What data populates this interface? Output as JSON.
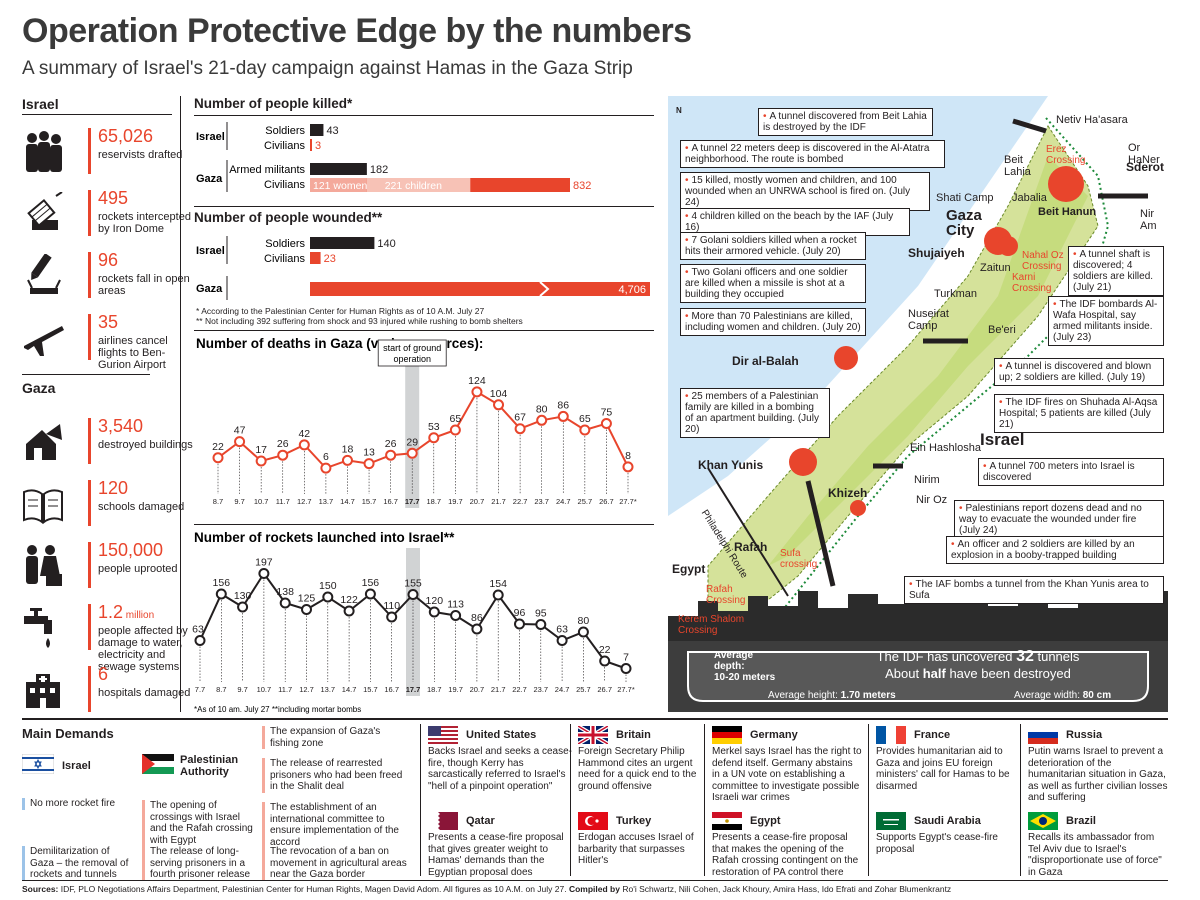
{
  "header": {
    "title": "Operation Protective Edge by the numbers",
    "subtitle": "A summary of Israel's 21-day campaign against Hamas in the Gaza Strip"
  },
  "israel": {
    "heading": "Israel",
    "stats": [
      {
        "icon": "soldiers-icon",
        "value": "65,026",
        "label": "reservists drafted"
      },
      {
        "icon": "iron-dome-icon",
        "value": "495",
        "label": "rockets intercepted by Iron Dome"
      },
      {
        "icon": "rocket-fall-icon",
        "value": "96",
        "label": "rockets fall in open areas"
      },
      {
        "icon": "airplane-icon",
        "value": "35",
        "label": "airlines cancel flights to Ben-Gurion Airport"
      }
    ]
  },
  "gaza": {
    "heading": "Gaza",
    "stats": [
      {
        "icon": "destroyed-building-icon",
        "value": "3,540",
        "label": "destroyed buildings"
      },
      {
        "icon": "book-icon",
        "value": "120",
        "label": "schools damaged"
      },
      {
        "icon": "people-uprooted-icon",
        "value": "150,000",
        "label": "people uprooted"
      },
      {
        "icon": "faucet-icon",
        "value": "1.2",
        "value_suffix": "million",
        "label": "people affected by damage to water, electricity and sewage systems"
      },
      {
        "icon": "hospital-icon",
        "value": "6",
        "label": "hospitals damaged"
      }
    ]
  },
  "killed": {
    "heading": "Number of people killed*",
    "israel_label": "Israel",
    "gaza_label": "Gaza",
    "rows": [
      {
        "label": "Soldiers",
        "value": 43,
        "value_text": "43"
      },
      {
        "label": "Civilians",
        "value": 3,
        "value_text": "3"
      },
      {
        "label": "Armed militants",
        "value": 182,
        "value_text": "182"
      },
      {
        "label": "Civilians",
        "value": 832,
        "value_text": "832"
      }
    ],
    "gaza_civilian_women": "121 women",
    "gaza_civilian_children": "221 children"
  },
  "wounded": {
    "heading": "Number of people wounded**",
    "israel_label": "Israel",
    "gaza_label": "Gaza",
    "rows": [
      {
        "label": "Soldiers",
        "value": 140,
        "value_text": "140"
      },
      {
        "label": "Civilians",
        "value": 23,
        "value_text": "23"
      },
      {
        "label": "",
        "value": 4706,
        "value_text": "4,706"
      }
    ],
    "footnote1": "* According to the Palestinian Center for Human Rights as of 10 A.M. July 27",
    "footnote2": "** Not including 392 suffering from shock and 93 injured while rushing to bomb shelters"
  },
  "chart_data": [
    {
      "type": "line",
      "title": "Number of deaths in Gaza (various sources):",
      "annotation": "start of ground operation",
      "x": [
        "8.7",
        "9.7",
        "10.7",
        "11.7",
        "12.7",
        "13.7",
        "14.7",
        "15.7",
        "16.7",
        "17.7",
        "18.7",
        "19.7",
        "20.7",
        "21.7",
        "22.7",
        "23.7",
        "24.7",
        "25.7",
        "26.7",
        "27.7*"
      ],
      "values": [
        22,
        47,
        17,
        26,
        42,
        6,
        18,
        13,
        26,
        29,
        53,
        65,
        124,
        104,
        67,
        80,
        86,
        65,
        75,
        8
      ],
      "ylim": [
        0,
        130
      ],
      "color": "#e8452c"
    },
    {
      "type": "line",
      "title": "Number of rockets launched into Israel**",
      "annotation": "",
      "x": [
        "7.7",
        "8.7",
        "9.7",
        "10.7",
        "11.7",
        "12.7",
        "13.7",
        "14.7",
        "15.7",
        "16.7",
        "17.7",
        "18.7",
        "19.7",
        "20.7",
        "21.7",
        "22.7",
        "23.7",
        "24.7",
        "25.7",
        "26.7",
        "27.7*"
      ],
      "values": [
        63,
        156,
        130,
        197,
        138,
        125,
        150,
        122,
        156,
        110,
        155,
        120,
        113,
        86,
        154,
        96,
        95,
        63,
        80,
        22,
        7
      ],
      "ylim": [
        0,
        200
      ],
      "color": "#231f20",
      "footnote": "*As of 10 am. July 27 **including mortar bombs"
    }
  ],
  "map": {
    "north": "N",
    "israel_label": "Israel",
    "egypt_label": "Egypt",
    "places": [
      "Netiv Ha'asara",
      "Erez Crossing",
      "Or HaNer",
      "Sderot",
      "Nir Am",
      "Beit Lahia",
      "Jabalia",
      "Beit Hanun",
      "Shati Camp",
      "Gaza City",
      "Shujaiyeh",
      "Zaitun",
      "Nahal Oz Crossing",
      "Karni Crossing",
      "Turkman",
      "Nuseirat Camp",
      "Be'eri",
      "Dir al-Balah",
      "Ein Hashlosha",
      "Nirim",
      "Khan Yunis",
      "Khizeh",
      "Nir Oz",
      "Philadelphi Route",
      "Rafah",
      "Sufa crossing",
      "Rafah Crossing",
      "Kerem Shalom Crossing"
    ],
    "notes": [
      "A tunnel discovered from Beit Lahia is destroyed by the IDF",
      "A tunnel 22 meters deep is discovered in the Al-Atatra neighborhood. The route is bombed",
      "15 killed, mostly women and children, and 100 wounded when an UNRWA school is fired on. (July 24)",
      "4 children killed on the beach by the IAF (July 16)",
      "7 Golani soldiers killed when a rocket hits their armored vehicle. (July 20)",
      "Two Golani officers and one soldier are killed when a missile is shot at a building they occupied",
      "More than 70 Palestinians are killed, including women and children. (July 20)",
      "25 members of a Palestinian family are killed in a bombing of an apartment building. (July 20)",
      "A tunnel shaft is discovered; 4 soldiers are killed. (July 21)",
      "The IDF bombards Al-Wafa Hospital, say armed militants inside. (July 23)",
      "A tunnel is discovered and blown up; 2 soldiers are killed. (July 19)",
      "The IDF fires on Shuhada Al-Aqsa Hospital; 5 patients are killed (July 21)",
      "A tunnel 700 meters into Israel is discovered",
      "Palestinians report dozens dead and no way to evacuate the wounded under fire (July 24)",
      "An officer and 2 soldiers are killed by an explosion in a booby-trapped building",
      "The IAF bombs a tunnel from the Khan Yunis area to Sufa"
    ],
    "tunnels": {
      "depth_label": "Average depth:",
      "depth_value": "10-20 meters",
      "line1_pre": "The IDF has uncovered ",
      "line1_num": "32",
      "line1_post": " tunnels",
      "line2_pre": "About ",
      "line2_bold": "half",
      "line2_post": " have been destroyed",
      "height_label": "Average height: ",
      "height_value": "1.70 meters",
      "width_label": "Average width: ",
      "width_value": "80 cm"
    }
  },
  "demands": {
    "heading": "Main Demands",
    "israel_label": "Israel",
    "palestinian_label": "Palestinian Authority",
    "israel_items": [
      "No more rocket fire",
      "Demilitarization of Gaza – the removal of rockets and tunnels"
    ],
    "pa_items": [
      "The opening of crossings with Israel and the Rafah crossing with Egypt",
      "The release of long-serving prisoners in a fourth prisoner release"
    ],
    "pa_items2": [
      "The expansion of Gaza's fishing zone",
      "The release of rearrested prisoners who had been freed in the Shalit deal",
      "The establishment of an international committee to ensure implementation of the accord",
      "The revocation of a ban on movement in agricultural areas near the Gaza border"
    ]
  },
  "countries": [
    {
      "name": "United States",
      "text": "Backs Israel and seeks a cease-fire, though Kerry has sarcastically referred to Israel's \"hell of a pinpoint operation\""
    },
    {
      "name": "Britain",
      "text": "Foreign Secretary Philip Hammond cites an urgent need for a quick end to the ground offensive"
    },
    {
      "name": "Germany",
      "text": "Merkel says Israel has the right to defend itself. Germany abstains in a UN vote on establishing a committee to investigate possible Israeli war crimes"
    },
    {
      "name": "France",
      "text": "Provides humanitarian aid to Gaza and joins EU foreign ministers' call for Hamas to be disarmed"
    },
    {
      "name": "Russia",
      "text": "Putin warns Israel to prevent a deterioration of the humanitarian situation in Gaza, as well as further civilian losses and suffering"
    },
    {
      "name": "Qatar",
      "text": "Presents a cease-fire proposal that gives greater weight to Hamas' demands than the Egyptian proposal does"
    },
    {
      "name": "Turkey",
      "text": "Erdogan accuses Israel of barbarity that surpasses Hitler's"
    },
    {
      "name": "Egypt",
      "text": "Presents a cease-fire proposal that makes the opening of the Rafah crossing contingent on the restoration of PA control there"
    },
    {
      "name": "Saudi Arabia",
      "text": "Supports Egypt's cease-fire proposal"
    },
    {
      "name": "Brazil",
      "text": "Recalls its ambassador from Tel Aviv due to Israel's \"disproportionate use of force\" in Gaza"
    }
  ],
  "footer": {
    "sources_label": "Sources:",
    "sources_text": " IDF, PLO Negotiations Affairs Department, Palestinian Center for Human Rights, Magen David Adom. All figures as 10 A.M. on July 27. ",
    "compiled_label": "Compiled by",
    "compiled_text": " Ro'i Schwartz, Nili Cohen, Jack Khoury, Amira Hass, Ido Efrati and Zohar Blumenkrantz"
  }
}
